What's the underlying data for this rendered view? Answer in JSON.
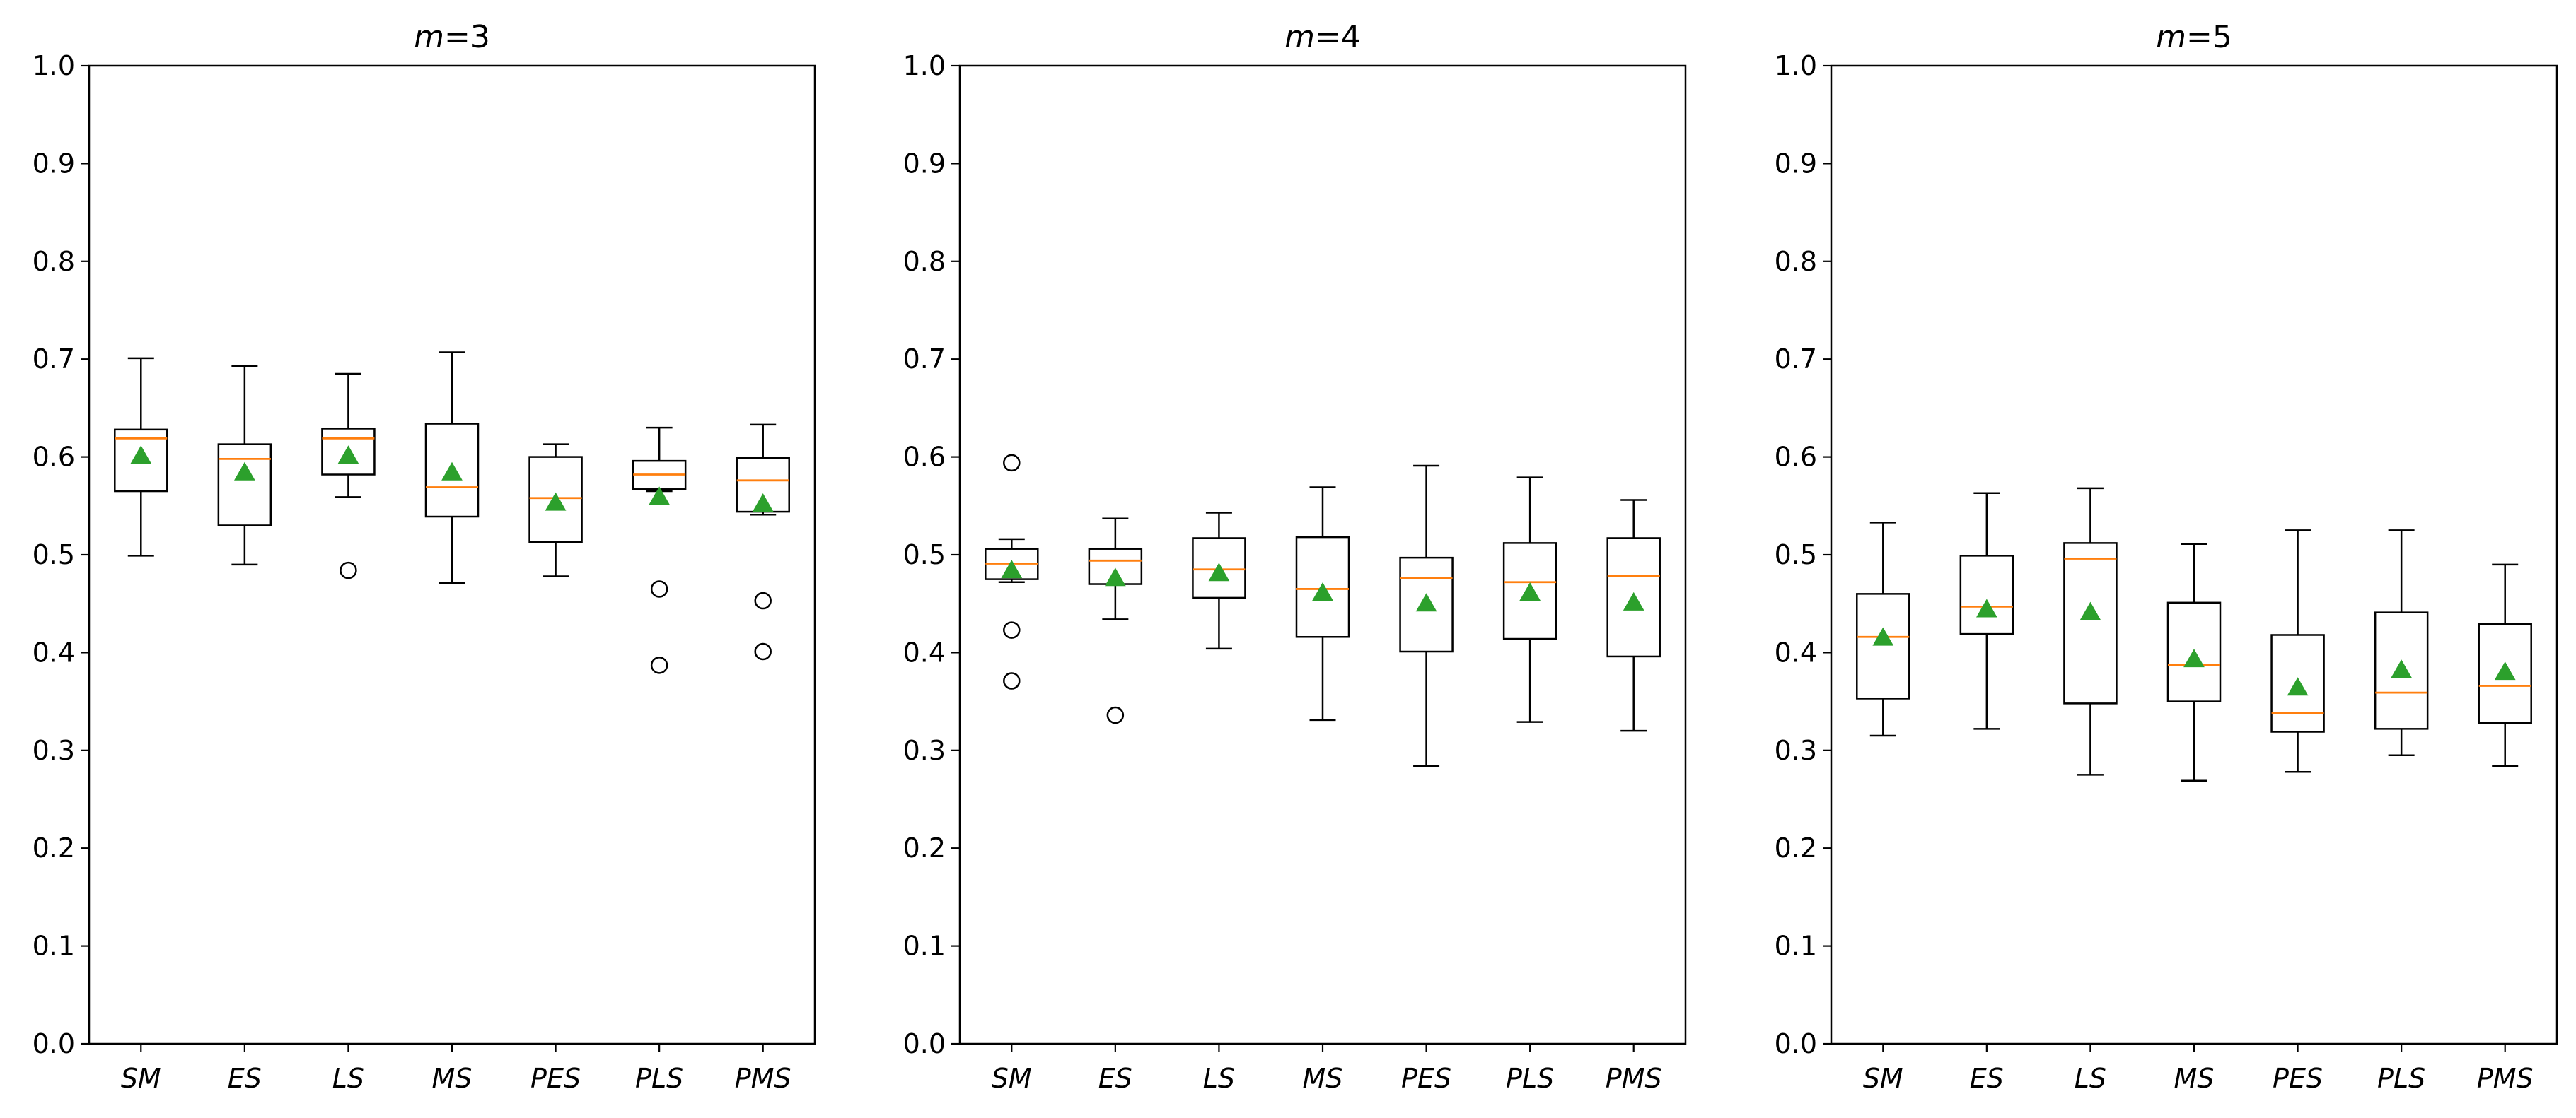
{
  "chart_data": [
    {
      "type": "box",
      "title_var": "m",
      "title_value": "3",
      "categories": [
        "SM",
        "ES",
        "LS",
        "MS",
        "PES",
        "PLS",
        "PMS"
      ],
      "ylim": [
        0,
        1
      ],
      "yticks": [
        "0.0",
        "0.1",
        "0.2",
        "0.3",
        "0.4",
        "0.5",
        "0.6",
        "0.7",
        "0.8",
        "0.9",
        "1.0"
      ],
      "boxes": [
        {
          "label": "SM",
          "whisker_low": 0.499,
          "q1": 0.565,
          "median": 0.619,
          "q3": 0.628,
          "whisker_high": 0.701,
          "mean": 0.601,
          "outliers": []
        },
        {
          "label": "ES",
          "whisker_low": 0.49,
          "q1": 0.53,
          "median": 0.598,
          "q3": 0.613,
          "whisker_high": 0.693,
          "mean": 0.584,
          "outliers": []
        },
        {
          "label": "LS",
          "whisker_low": 0.559,
          "q1": 0.582,
          "median": 0.619,
          "q3": 0.629,
          "whisker_high": 0.685,
          "mean": 0.601,
          "outliers": [
            0.484
          ]
        },
        {
          "label": "MS",
          "whisker_low": 0.471,
          "q1": 0.539,
          "median": 0.569,
          "q3": 0.634,
          "whisker_high": 0.707,
          "mean": 0.584,
          "outliers": []
        },
        {
          "label": "PES",
          "whisker_low": 0.478,
          "q1": 0.513,
          "median": 0.558,
          "q3": 0.6,
          "whisker_high": 0.613,
          "mean": 0.553,
          "outliers": []
        },
        {
          "label": "PLS",
          "whisker_low": 0.565,
          "q1": 0.567,
          "median": 0.582,
          "q3": 0.596,
          "whisker_high": 0.63,
          "mean": 0.559,
          "outliers": [
            0.465,
            0.387
          ]
        },
        {
          "label": "PMS",
          "whisker_low": 0.541,
          "q1": 0.544,
          "median": 0.576,
          "q3": 0.599,
          "whisker_high": 0.633,
          "mean": 0.552,
          "outliers": [
            0.453,
            0.401
          ]
        }
      ]
    },
    {
      "type": "box",
      "title_var": "m",
      "title_value": "4",
      "categories": [
        "SM",
        "ES",
        "LS",
        "MS",
        "PES",
        "PLS",
        "PMS"
      ],
      "ylim": [
        0,
        1
      ],
      "yticks": [
        "0.0",
        "0.1",
        "0.2",
        "0.3",
        "0.4",
        "0.5",
        "0.6",
        "0.7",
        "0.8",
        "0.9",
        "1.0"
      ],
      "boxes": [
        {
          "label": "SM",
          "whisker_low": 0.472,
          "q1": 0.475,
          "median": 0.491,
          "q3": 0.506,
          "whisker_high": 0.516,
          "mean": 0.484,
          "outliers": [
            0.594,
            0.423,
            0.371
          ]
        },
        {
          "label": "ES",
          "whisker_low": 0.434,
          "q1": 0.47,
          "median": 0.494,
          "q3": 0.506,
          "whisker_high": 0.537,
          "mean": 0.476,
          "outliers": [
            0.336
          ]
        },
        {
          "label": "LS",
          "whisker_low": 0.404,
          "q1": 0.456,
          "median": 0.485,
          "q3": 0.517,
          "whisker_high": 0.543,
          "mean": 0.481,
          "outliers": []
        },
        {
          "label": "MS",
          "whisker_low": 0.331,
          "q1": 0.416,
          "median": 0.465,
          "q3": 0.518,
          "whisker_high": 0.569,
          "mean": 0.461,
          "outliers": []
        },
        {
          "label": "PES",
          "whisker_low": 0.284,
          "q1": 0.401,
          "median": 0.476,
          "q3": 0.497,
          "whisker_high": 0.591,
          "mean": 0.45,
          "outliers": []
        },
        {
          "label": "PLS",
          "whisker_low": 0.329,
          "q1": 0.414,
          "median": 0.472,
          "q3": 0.512,
          "whisker_high": 0.579,
          "mean": 0.461,
          "outliers": []
        },
        {
          "label": "PMS",
          "whisker_low": 0.32,
          "q1": 0.396,
          "median": 0.478,
          "q3": 0.517,
          "whisker_high": 0.556,
          "mean": 0.451,
          "outliers": []
        }
      ]
    },
    {
      "type": "box",
      "title_var": "m",
      "title_value": "5",
      "categories": [
        "SM",
        "ES",
        "LS",
        "MS",
        "PES",
        "PLS",
        "PMS"
      ],
      "ylim": [
        0,
        1
      ],
      "yticks": [
        "0.0",
        "0.1",
        "0.2",
        "0.3",
        "0.4",
        "0.5",
        "0.6",
        "0.7",
        "0.8",
        "0.9",
        "1.0"
      ],
      "boxes": [
        {
          "label": "SM",
          "whisker_low": 0.315,
          "q1": 0.353,
          "median": 0.416,
          "q3": 0.46,
          "whisker_high": 0.533,
          "mean": 0.415,
          "outliers": []
        },
        {
          "label": "ES",
          "whisker_low": 0.322,
          "q1": 0.419,
          "median": 0.447,
          "q3": 0.499,
          "whisker_high": 0.563,
          "mean": 0.444,
          "outliers": []
        },
        {
          "label": "LS",
          "whisker_low": 0.275,
          "q1": 0.348,
          "median": 0.496,
          "q3": 0.512,
          "whisker_high": 0.568,
          "mean": 0.441,
          "outliers": []
        },
        {
          "label": "MS",
          "whisker_low": 0.269,
          "q1": 0.35,
          "median": 0.387,
          "q3": 0.451,
          "whisker_high": 0.511,
          "mean": 0.393,
          "outliers": []
        },
        {
          "label": "PES",
          "whisker_low": 0.278,
          "q1": 0.319,
          "median": 0.338,
          "q3": 0.418,
          "whisker_high": 0.525,
          "mean": 0.364,
          "outliers": []
        },
        {
          "label": "PLS",
          "whisker_low": 0.295,
          "q1": 0.322,
          "median": 0.359,
          "q3": 0.441,
          "whisker_high": 0.525,
          "mean": 0.382,
          "outliers": []
        },
        {
          "label": "PMS",
          "whisker_low": 0.284,
          "q1": 0.328,
          "median": 0.366,
          "q3": 0.429,
          "whisker_high": 0.49,
          "mean": 0.38,
          "outliers": []
        }
      ]
    }
  ],
  "colors": {
    "box": "#000000",
    "median": "#ff7f0e",
    "mean": "#2ca02c",
    "outlier_edge": "#000000",
    "background": "#ffffff"
  }
}
